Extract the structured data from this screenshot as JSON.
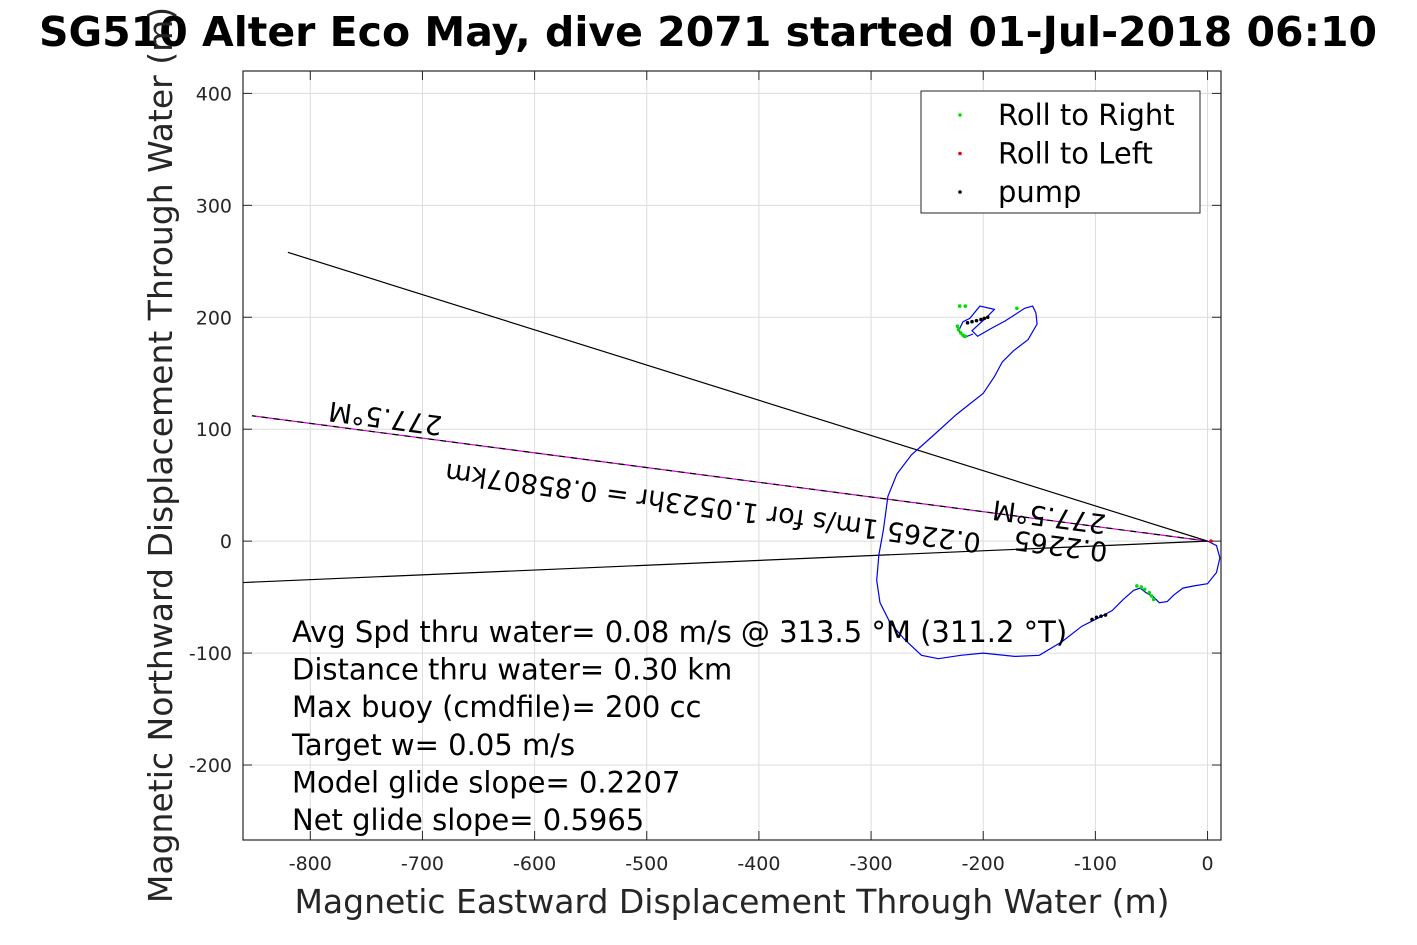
{
  "chart_data": {
    "type": "scatter",
    "title": "SG510 Alter Eco May, dive 2071 started 01-Jul-2018 06:10",
    "xlabel": "Magnetic Eastward Displacement Through Water (m)",
    "ylabel": "Magnetic Northward Displacement Through Water (m)",
    "xlim": [
      -860,
      12
    ],
    "ylim": [
      -267,
      420
    ],
    "xticks": [
      -800,
      -700,
      -600,
      -500,
      -400,
      -300,
      -200,
      -100,
      0
    ],
    "yticks": [
      -200,
      -100,
      0,
      100,
      200,
      300,
      400
    ],
    "xtick_labels": [
      "-800",
      "-700",
      "-600",
      "-500",
      "-400",
      "-300",
      "-200",
      "-100",
      "0"
    ],
    "ytick_labels": [
      "-200",
      "-100",
      "0",
      "100",
      "200",
      "300",
      "400"
    ],
    "grid": true,
    "legend_position": "top-right",
    "legend": [
      {
        "label": "Roll to Right",
        "color": "#00dd00"
      },
      {
        "label": "Roll to Left",
        "color": "#ee0000"
      },
      {
        "label": "pump",
        "color": "#000000"
      }
    ],
    "track": {
      "color": "#0000ee",
      "points": [
        [
          0,
          0
        ],
        [
          8,
          -4
        ],
        [
          11,
          -15
        ],
        [
          8,
          -28
        ],
        [
          0,
          -38
        ],
        [
          -12,
          -40
        ],
        [
          -22,
          -42
        ],
        [
          -30,
          -48
        ],
        [
          -36,
          -54
        ],
        [
          -43,
          -55
        ],
        [
          -48,
          -50
        ],
        [
          -55,
          -46
        ],
        [
          -60,
          -42
        ],
        [
          -66,
          -44
        ],
        [
          -75,
          -52
        ],
        [
          -85,
          -62
        ],
        [
          -96,
          -68
        ],
        [
          -112,
          -76
        ],
        [
          -130,
          -90
        ],
        [
          -150,
          -102
        ],
        [
          -172,
          -103
        ],
        [
          -200,
          -100
        ],
        [
          -220,
          -102
        ],
        [
          -240,
          -105
        ],
        [
          -255,
          -102
        ],
        [
          -270,
          -88
        ],
        [
          -283,
          -73
        ],
        [
          -292,
          -55
        ],
        [
          -295,
          -35
        ],
        [
          -293,
          -12
        ],
        [
          -289,
          10
        ],
        [
          -285,
          40
        ],
        [
          -277,
          60
        ],
        [
          -264,
          77
        ],
        [
          -246,
          93
        ],
        [
          -224,
          113
        ],
        [
          -200,
          132
        ],
        [
          -190,
          147
        ],
        [
          -183,
          160
        ],
        [
          -173,
          170
        ],
        [
          -160,
          180
        ],
        [
          -152,
          194
        ],
        [
          -153,
          204
        ],
        [
          -156,
          210
        ],
        [
          -163,
          208
        ],
        [
          -180,
          197
        ],
        [
          -193,
          190
        ],
        [
          -205,
          183
        ],
        [
          -210,
          188
        ],
        [
          -197,
          200
        ],
        [
          -190,
          207
        ],
        [
          -203,
          210
        ],
        [
          -212,
          199
        ],
        [
          -218,
          196
        ],
        [
          -222,
          188
        ],
        [
          -217,
          182
        ],
        [
          -209,
          185
        ]
      ]
    },
    "roll_right_points": [
      [
        -221,
        210
      ],
      [
        -216,
        210
      ],
      [
        -170,
        208
      ],
      [
        -223,
        192
      ],
      [
        -222,
        189
      ],
      [
        -220,
        186
      ],
      [
        -218,
        184
      ],
      [
        -216,
        183
      ],
      [
        -63,
        -40
      ],
      [
        -59,
        -41
      ],
      [
        -56,
        -43
      ],
      [
        -52,
        -46
      ],
      [
        -50,
        -49
      ],
      [
        -48,
        -52
      ]
    ],
    "roll_left_points": [
      [
        3,
        0
      ]
    ],
    "pump_points": [
      [
        -214,
        195
      ],
      [
        -210,
        196
      ],
      [
        -206,
        197
      ],
      [
        -202,
        198
      ],
      [
        -199,
        199
      ],
      [
        -196,
        200
      ],
      [
        -103,
        -70
      ],
      [
        -99,
        -68
      ],
      [
        -95,
        -67
      ],
      [
        -91,
        -66
      ]
    ],
    "lines": [
      {
        "from": [
          0,
          0
        ],
        "to": [
          -820,
          258
        ],
        "color": "#000000"
      },
      {
        "from": [
          0,
          0
        ],
        "to": [
          -860,
          -37
        ],
        "color": "#000000"
      },
      {
        "from": [
          0,
          0
        ],
        "to": [
          -852,
          112
        ],
        "color": "#cc00cc"
      },
      {
        "from": [
          0,
          0
        ],
        "to": [
          -852,
          112
        ],
        "color": "#000000"
      }
    ],
    "annotations": [
      {
        "text": "277.5°M",
        "x": -732,
        "y": 118,
        "rotation_deg": 187.5
      },
      {
        "text": "0.2265 1m/s for 1.0523hr = 0.85807km",
        "x": -440,
        "y": 38,
        "rotation_deg": 187.5
      },
      {
        "text": "277.5°M",
        "x": -140,
        "y": 30,
        "rotation_deg": 187.5
      },
      {
        "text": "0.2265",
        "x": -130,
        "y": 4,
        "rotation_deg": 187.5
      }
    ],
    "stats": [
      "Avg Spd thru water=  0.08 m/s @ 313.5 °M (311.2 °T)",
      "Distance thru water=  0.30 km",
      "Max buoy (cmdfile)= 200 cc",
      "Target w= 0.05 m/s",
      "Model glide slope= 0.2207",
      "Net glide slope= 0.5965"
    ]
  }
}
